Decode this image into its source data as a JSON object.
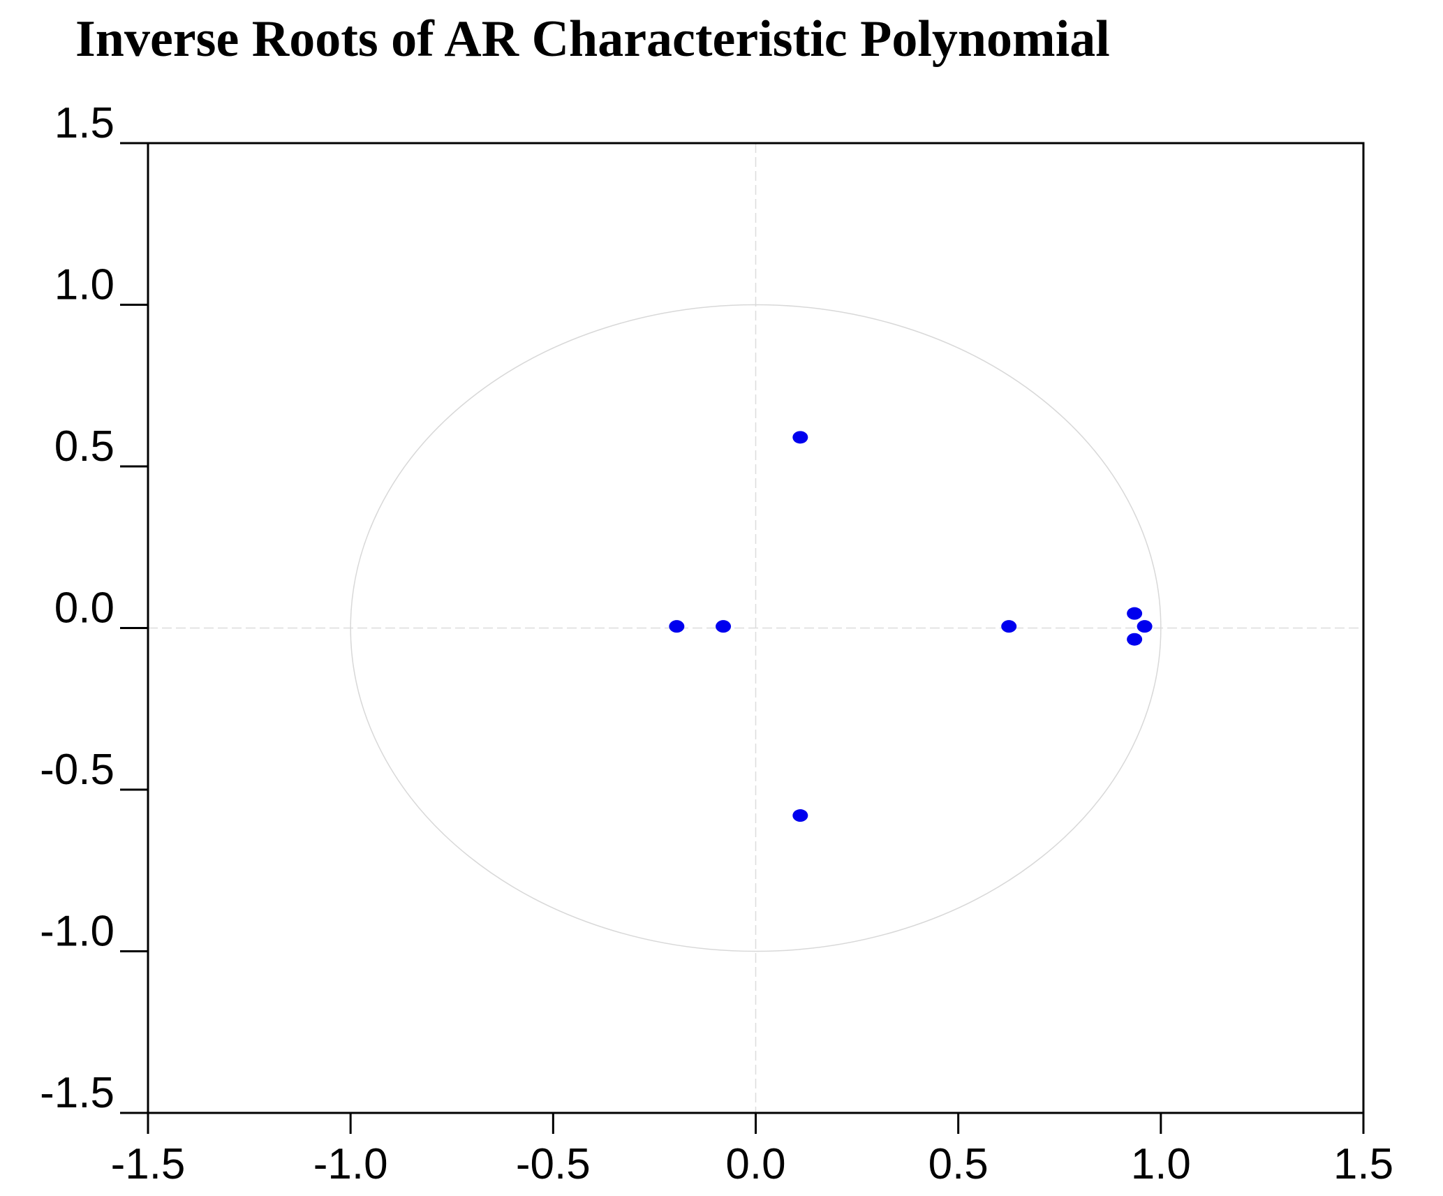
{
  "chart_data": {
    "type": "scatter",
    "title": "Inverse Roots of AR Characteristic Polynomial",
    "xlim": [
      -1.5,
      1.5
    ],
    "ylim": [
      -1.5,
      1.5
    ],
    "x_ticks": [
      "-1.5",
      "-1.0",
      "-0.5",
      "0.0",
      "0.5",
      "1.0",
      "1.5"
    ],
    "y_ticks": [
      "1.5",
      "1.0",
      "0.5",
      "0.0",
      "-0.5",
      "-1.0",
      "-1.5"
    ],
    "x_tick_values": [
      -1.5,
      -1.0,
      -0.5,
      0.0,
      0.5,
      1.0,
      1.5
    ],
    "y_tick_values": [
      1.5,
      1.0,
      0.5,
      0.0,
      -0.5,
      -1.0,
      -1.5
    ],
    "unit_circle": true,
    "zero_lines": true,
    "grid": false,
    "point_color": "#0000ee",
    "points": [
      {
        "x": 0.11,
        "y": 0.59
      },
      {
        "x": 0.11,
        "y": -0.58
      },
      {
        "x": -0.195,
        "y": 0.005
      },
      {
        "x": -0.08,
        "y": 0.005
      },
      {
        "x": 0.625,
        "y": 0.005
      },
      {
        "x": 0.935,
        "y": 0.045
      },
      {
        "x": 0.96,
        "y": 0.005
      },
      {
        "x": 0.935,
        "y": -0.035
      }
    ]
  }
}
